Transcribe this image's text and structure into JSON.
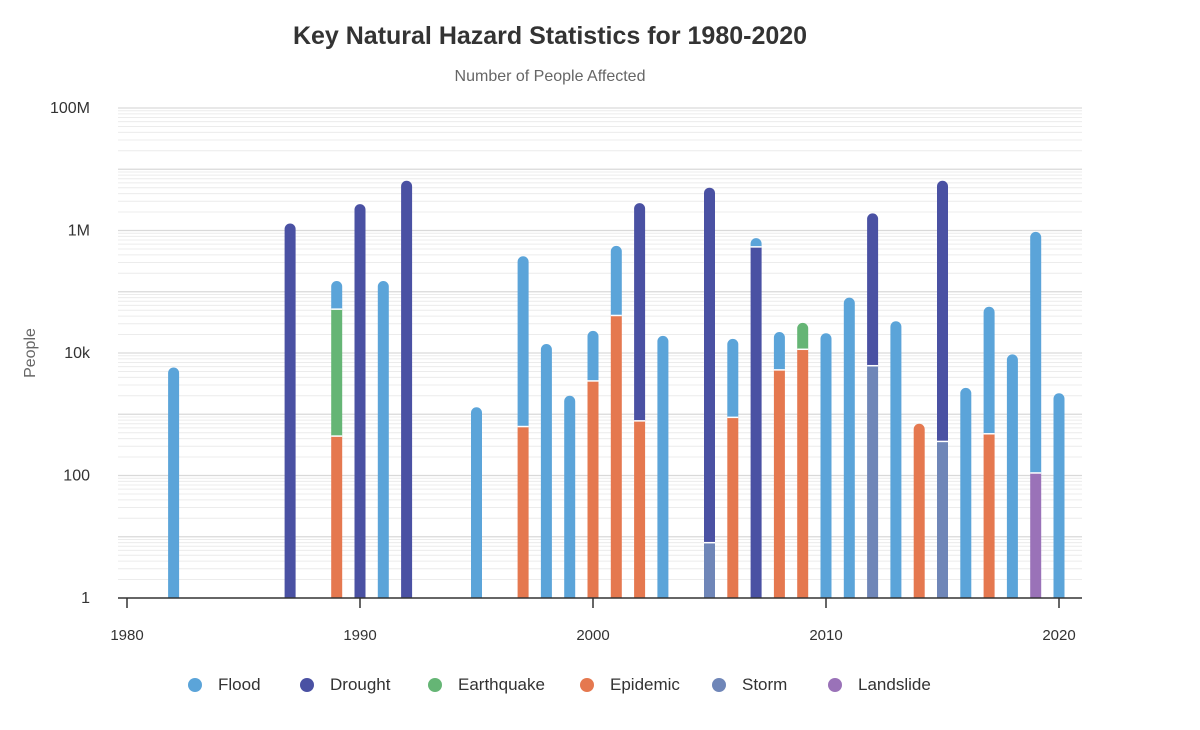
{
  "chart_data": {
    "type": "bar",
    "stacked": true,
    "title": "Key Natural Hazard Statistics for 1980-2020",
    "subtitle": "Number of People Affected",
    "xlabel": "",
    "ylabel": "People",
    "yscale": "log",
    "ylim": [
      1,
      100000000
    ],
    "xlim": [
      1980,
      2021
    ],
    "x_ticks": [
      "1980",
      "1990",
      "2000",
      "2010",
      "2020"
    ],
    "y_ticks": [
      "1",
      "100",
      "10k",
      "1M",
      "100M"
    ],
    "grid": true,
    "legend_position": "bottom",
    "series": [
      {
        "name": "Flood",
        "color": "#5ba4d9"
      },
      {
        "name": "Drought",
        "color": "#4a51a3"
      },
      {
        "name": "Earthquake",
        "color": "#65b575"
      },
      {
        "name": "Epidemic",
        "color": "#e5784f"
      },
      {
        "name": "Storm",
        "color": "#6f86b8"
      },
      {
        "name": "Landslide",
        "color": "#9a72b8"
      }
    ],
    "bars": [
      {
        "year": 1982,
        "segments": [
          {
            "series": "Flood",
            "value": 5800
          }
        ]
      },
      {
        "year": 1987,
        "segments": [
          {
            "series": "Drought",
            "value": 1300000
          }
        ]
      },
      {
        "year": 1989,
        "segments": [
          {
            "series": "Epidemic",
            "value": 440
          },
          {
            "series": "Earthquake",
            "value": 52000
          },
          {
            "series": "Flood",
            "value": 150000
          }
        ]
      },
      {
        "year": 1990,
        "segments": [
          {
            "series": "Drought",
            "value": 2700000
          }
        ]
      },
      {
        "year": 1991,
        "segments": [
          {
            "series": "Flood",
            "value": 150000
          }
        ]
      },
      {
        "year": 1992,
        "segments": [
          {
            "series": "Drought",
            "value": 6500000
          }
        ]
      },
      {
        "year": 1995,
        "segments": [
          {
            "series": "Flood",
            "value": 1300
          }
        ]
      },
      {
        "year": 1997,
        "segments": [
          {
            "series": "Epidemic",
            "value": 630
          },
          {
            "series": "Flood",
            "value": 380000
          }
        ]
      },
      {
        "year": 1998,
        "segments": [
          {
            "series": "Flood",
            "value": 14000
          }
        ]
      },
      {
        "year": 1999,
        "segments": [
          {
            "series": "Flood",
            "value": 2000
          }
        ]
      },
      {
        "year": 2000,
        "segments": [
          {
            "series": "Epidemic",
            "value": 3500
          },
          {
            "series": "Flood",
            "value": 23000
          }
        ]
      },
      {
        "year": 2001,
        "segments": [
          {
            "series": "Epidemic",
            "value": 41000
          },
          {
            "series": "Flood",
            "value": 560000
          }
        ]
      },
      {
        "year": 2002,
        "segments": [
          {
            "series": "Epidemic",
            "value": 780
          },
          {
            "series": "Drought",
            "value": 2800000
          }
        ]
      },
      {
        "year": 2003,
        "segments": [
          {
            "series": "Flood",
            "value": 19000
          }
        ]
      },
      {
        "year": 2005,
        "segments": [
          {
            "series": "Storm",
            "value": 8
          },
          {
            "series": "Drought",
            "value": 5000000
          }
        ]
      },
      {
        "year": 2006,
        "segments": [
          {
            "series": "Epidemic",
            "value": 890
          },
          {
            "series": "Flood",
            "value": 17000
          }
        ]
      },
      {
        "year": 2007,
        "segments": [
          {
            "series": "Drought",
            "value": 540000
          },
          {
            "series": "Flood",
            "value": 750000
          }
        ]
      },
      {
        "year": 2008,
        "segments": [
          {
            "series": "Epidemic",
            "value": 5300
          },
          {
            "series": "Flood",
            "value": 22000
          }
        ]
      },
      {
        "year": 2009,
        "segments": [
          {
            "series": "Epidemic",
            "value": 11500
          },
          {
            "series": "Earthquake",
            "value": 31000
          }
        ]
      },
      {
        "year": 2010,
        "segments": [
          {
            "series": "Flood",
            "value": 21000
          }
        ]
      },
      {
        "year": 2011,
        "segments": [
          {
            "series": "Flood",
            "value": 80000
          }
        ]
      },
      {
        "year": 2012,
        "segments": [
          {
            "series": "Storm",
            "value": 6200
          },
          {
            "series": "Drought",
            "value": 1900000
          }
        ]
      },
      {
        "year": 2013,
        "segments": [
          {
            "series": "Flood",
            "value": 33000
          }
        ]
      },
      {
        "year": 2014,
        "segments": [
          {
            "series": "Epidemic",
            "value": 700
          }
        ]
      },
      {
        "year": 2015,
        "segments": [
          {
            "series": "Storm",
            "value": 360
          },
          {
            "series": "Drought",
            "value": 6500000
          }
        ]
      },
      {
        "year": 2016,
        "segments": [
          {
            "series": "Flood",
            "value": 2700
          }
        ]
      },
      {
        "year": 2017,
        "segments": [
          {
            "series": "Epidemic",
            "value": 480
          },
          {
            "series": "Flood",
            "value": 57000
          }
        ]
      },
      {
        "year": 2018,
        "segments": [
          {
            "series": "Flood",
            "value": 9500
          }
        ]
      },
      {
        "year": 2019,
        "segments": [
          {
            "series": "Landslide",
            "value": 110
          },
          {
            "series": "Flood",
            "value": 950000
          }
        ]
      },
      {
        "year": 2020,
        "segments": [
          {
            "series": "Flood",
            "value": 2200
          }
        ]
      }
    ]
  }
}
